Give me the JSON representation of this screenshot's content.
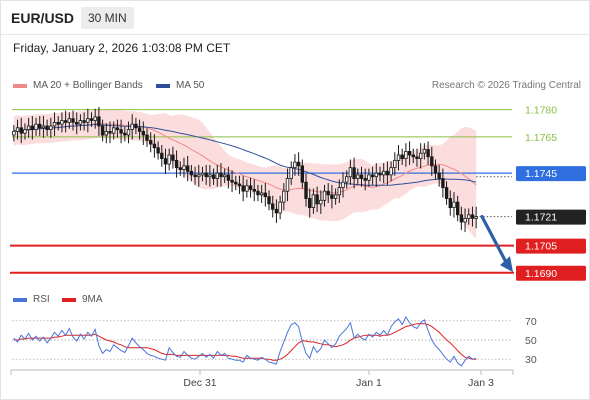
{
  "header": {
    "symbol": "EUR/USD",
    "interval": "30 MIN",
    "datetime": "Friday, January 2, 2026 1:03:08 PM CET"
  },
  "legend": {
    "ma20": {
      "label": "MA 20 + Bollinger Bands",
      "color": "#f08a8a"
    },
    "ma50": {
      "label": "MA 50",
      "color": "#2d4f9a"
    },
    "credit": "Research © 2026 Trading Central"
  },
  "rsi_legend": {
    "rsi": {
      "label": "RSI",
      "color": "#4b74d6"
    },
    "ma9": {
      "label": "9MA",
      "color": "#e02020"
    }
  },
  "colors": {
    "up_candle": "#ffffff",
    "down_candle": "#1a1a1a",
    "resistance": "#8bbf45",
    "pivot": "#2f6fe0",
    "support": "#e02020",
    "last_price": "#222222",
    "arrow": "#2e5ea8",
    "band": "#fbd7d7"
  },
  "chart_data": [
    {
      "type": "candlestick",
      "title": "EUR/USD",
      "ylim": [
        1.1686,
        1.1787
      ],
      "x_ticks": [
        "Dec 31",
        "Jan 1",
        "Jan 3"
      ],
      "levels": [
        {
          "label": "1.1780",
          "value": 1.178,
          "kind": "resistance"
        },
        {
          "label": "1.1765",
          "value": 1.1765,
          "kind": "resistance"
        },
        {
          "label": "1.1745",
          "value": 1.1745,
          "kind": "pivot"
        },
        {
          "label": "1.1721",
          "value": 1.1721,
          "kind": "last"
        },
        {
          "label": "1.1705",
          "value": 1.1705,
          "kind": "support"
        },
        {
          "label": "1.1690",
          "value": 1.169,
          "kind": "support"
        }
      ],
      "close": [
        1.1768,
        1.177,
        1.1767,
        1.1769,
        1.1771,
        1.1769,
        1.1772,
        1.177,
        1.1771,
        1.1769,
        1.1771,
        1.1773,
        1.1772,
        1.1774,
        1.1773,
        1.1775,
        1.1773,
        1.1772,
        1.1774,
        1.1773,
        1.1775,
        1.1774,
        1.1776,
        1.1771,
        1.1766,
        1.1768,
        1.1767,
        1.177,
        1.1769,
        1.1767,
        1.1766,
        1.1769,
        1.1772,
        1.177,
        1.1768,
        1.1766,
        1.1763,
        1.1761,
        1.1759,
        1.1756,
        1.1753,
        1.175,
        1.1755,
        1.1752,
        1.1748,
        1.1747,
        1.1749,
        1.1746,
        1.1744,
        1.1743,
        1.1744,
        1.1745,
        1.1743,
        1.1744,
        1.1742,
        1.1745,
        1.1743,
        1.1744,
        1.1741,
        1.174,
        1.1739,
        1.1738,
        1.1735,
        1.1738,
        1.1736,
        1.1735,
        1.1733,
        1.1734,
        1.1732,
        1.1728,
        1.1725,
        1.1723,
        1.1729,
        1.1735,
        1.1742,
        1.1748,
        1.1751,
        1.1749,
        1.174,
        1.1731,
        1.1726,
        1.1733,
        1.1728,
        1.173,
        1.1735,
        1.1733,
        1.1731,
        1.1733,
        1.1737,
        1.174,
        1.1743,
        1.1748,
        1.1742,
        1.1744,
        1.1742,
        1.1741,
        1.1744,
        1.1743,
        1.1745,
        1.1744,
        1.1746,
        1.1744,
        1.1748,
        1.1752,
        1.1755,
        1.1753,
        1.1757,
        1.1755,
        1.1754,
        1.1753,
        1.1756,
        1.1758,
        1.1754,
        1.1749,
        1.1745,
        1.1742,
        1.1737,
        1.1731,
        1.1726,
        1.1729,
        1.1722,
        1.1718,
        1.172,
        1.1722,
        1.172,
        1.1721
      ]
    },
    {
      "type": "line",
      "title": "RSI",
      "ylim": [
        25,
        75
      ],
      "y_ticks": [
        70,
        50,
        30
      ],
      "series": [
        {
          "name": "RSI",
          "values": [
            52,
            48,
            55,
            51,
            57,
            50,
            54,
            49,
            53,
            47,
            52,
            58,
            54,
            60,
            55,
            62,
            53,
            49,
            56,
            51,
            58,
            54,
            61,
            44,
            36,
            40,
            38,
            45,
            42,
            39,
            37,
            44,
            52,
            47,
            43,
            40,
            36,
            34,
            33,
            31,
            30,
            29,
            42,
            37,
            33,
            32,
            38,
            34,
            31,
            30,
            33,
            36,
            32,
            35,
            31,
            38,
            34,
            36,
            31,
            30,
            29,
            29,
            27,
            34,
            31,
            30,
            29,
            32,
            30,
            27,
            26,
            25,
            38,
            48,
            58,
            66,
            68,
            64,
            48,
            36,
            31,
            43,
            37,
            41,
            50,
            46,
            42,
            46,
            54,
            58,
            62,
            68,
            52,
            56,
            52,
            50,
            56,
            53,
            58,
            55,
            60,
            55,
            64,
            69,
            72,
            66,
            74,
            68,
            64,
            62,
            68,
            71,
            60,
            50,
            44,
            40,
            35,
            30,
            27,
            33,
            26,
            23,
            29,
            33,
            30,
            31
          ]
        },
        {
          "name": "9MA",
          "values": [
            50,
            50,
            51,
            51,
            52,
            52,
            52,
            52,
            52,
            52,
            52,
            53,
            53,
            54,
            55,
            55,
            55,
            55,
            55,
            55,
            55,
            55,
            56,
            54,
            52,
            50,
            49,
            48,
            46,
            45,
            43,
            42,
            42,
            42,
            42,
            42,
            42,
            41,
            40,
            38,
            36,
            35,
            35,
            35,
            34,
            34,
            34,
            34,
            34,
            34,
            34,
            34,
            34,
            34,
            34,
            34,
            34,
            34,
            34,
            33,
            33,
            32,
            31,
            31,
            31,
            31,
            31,
            31,
            30,
            30,
            29,
            29,
            30,
            32,
            35,
            39,
            43,
            47,
            49,
            49,
            48,
            48,
            47,
            46,
            45,
            45,
            44,
            43,
            44,
            45,
            47,
            50,
            52,
            53,
            54,
            55,
            55,
            55,
            55,
            54,
            55,
            55,
            56,
            58,
            60,
            62,
            64,
            65,
            66,
            67,
            67,
            67,
            66,
            64,
            61,
            58,
            54,
            50,
            47,
            43,
            39,
            35,
            32,
            31,
            30,
            30
          ]
        }
      ]
    }
  ]
}
